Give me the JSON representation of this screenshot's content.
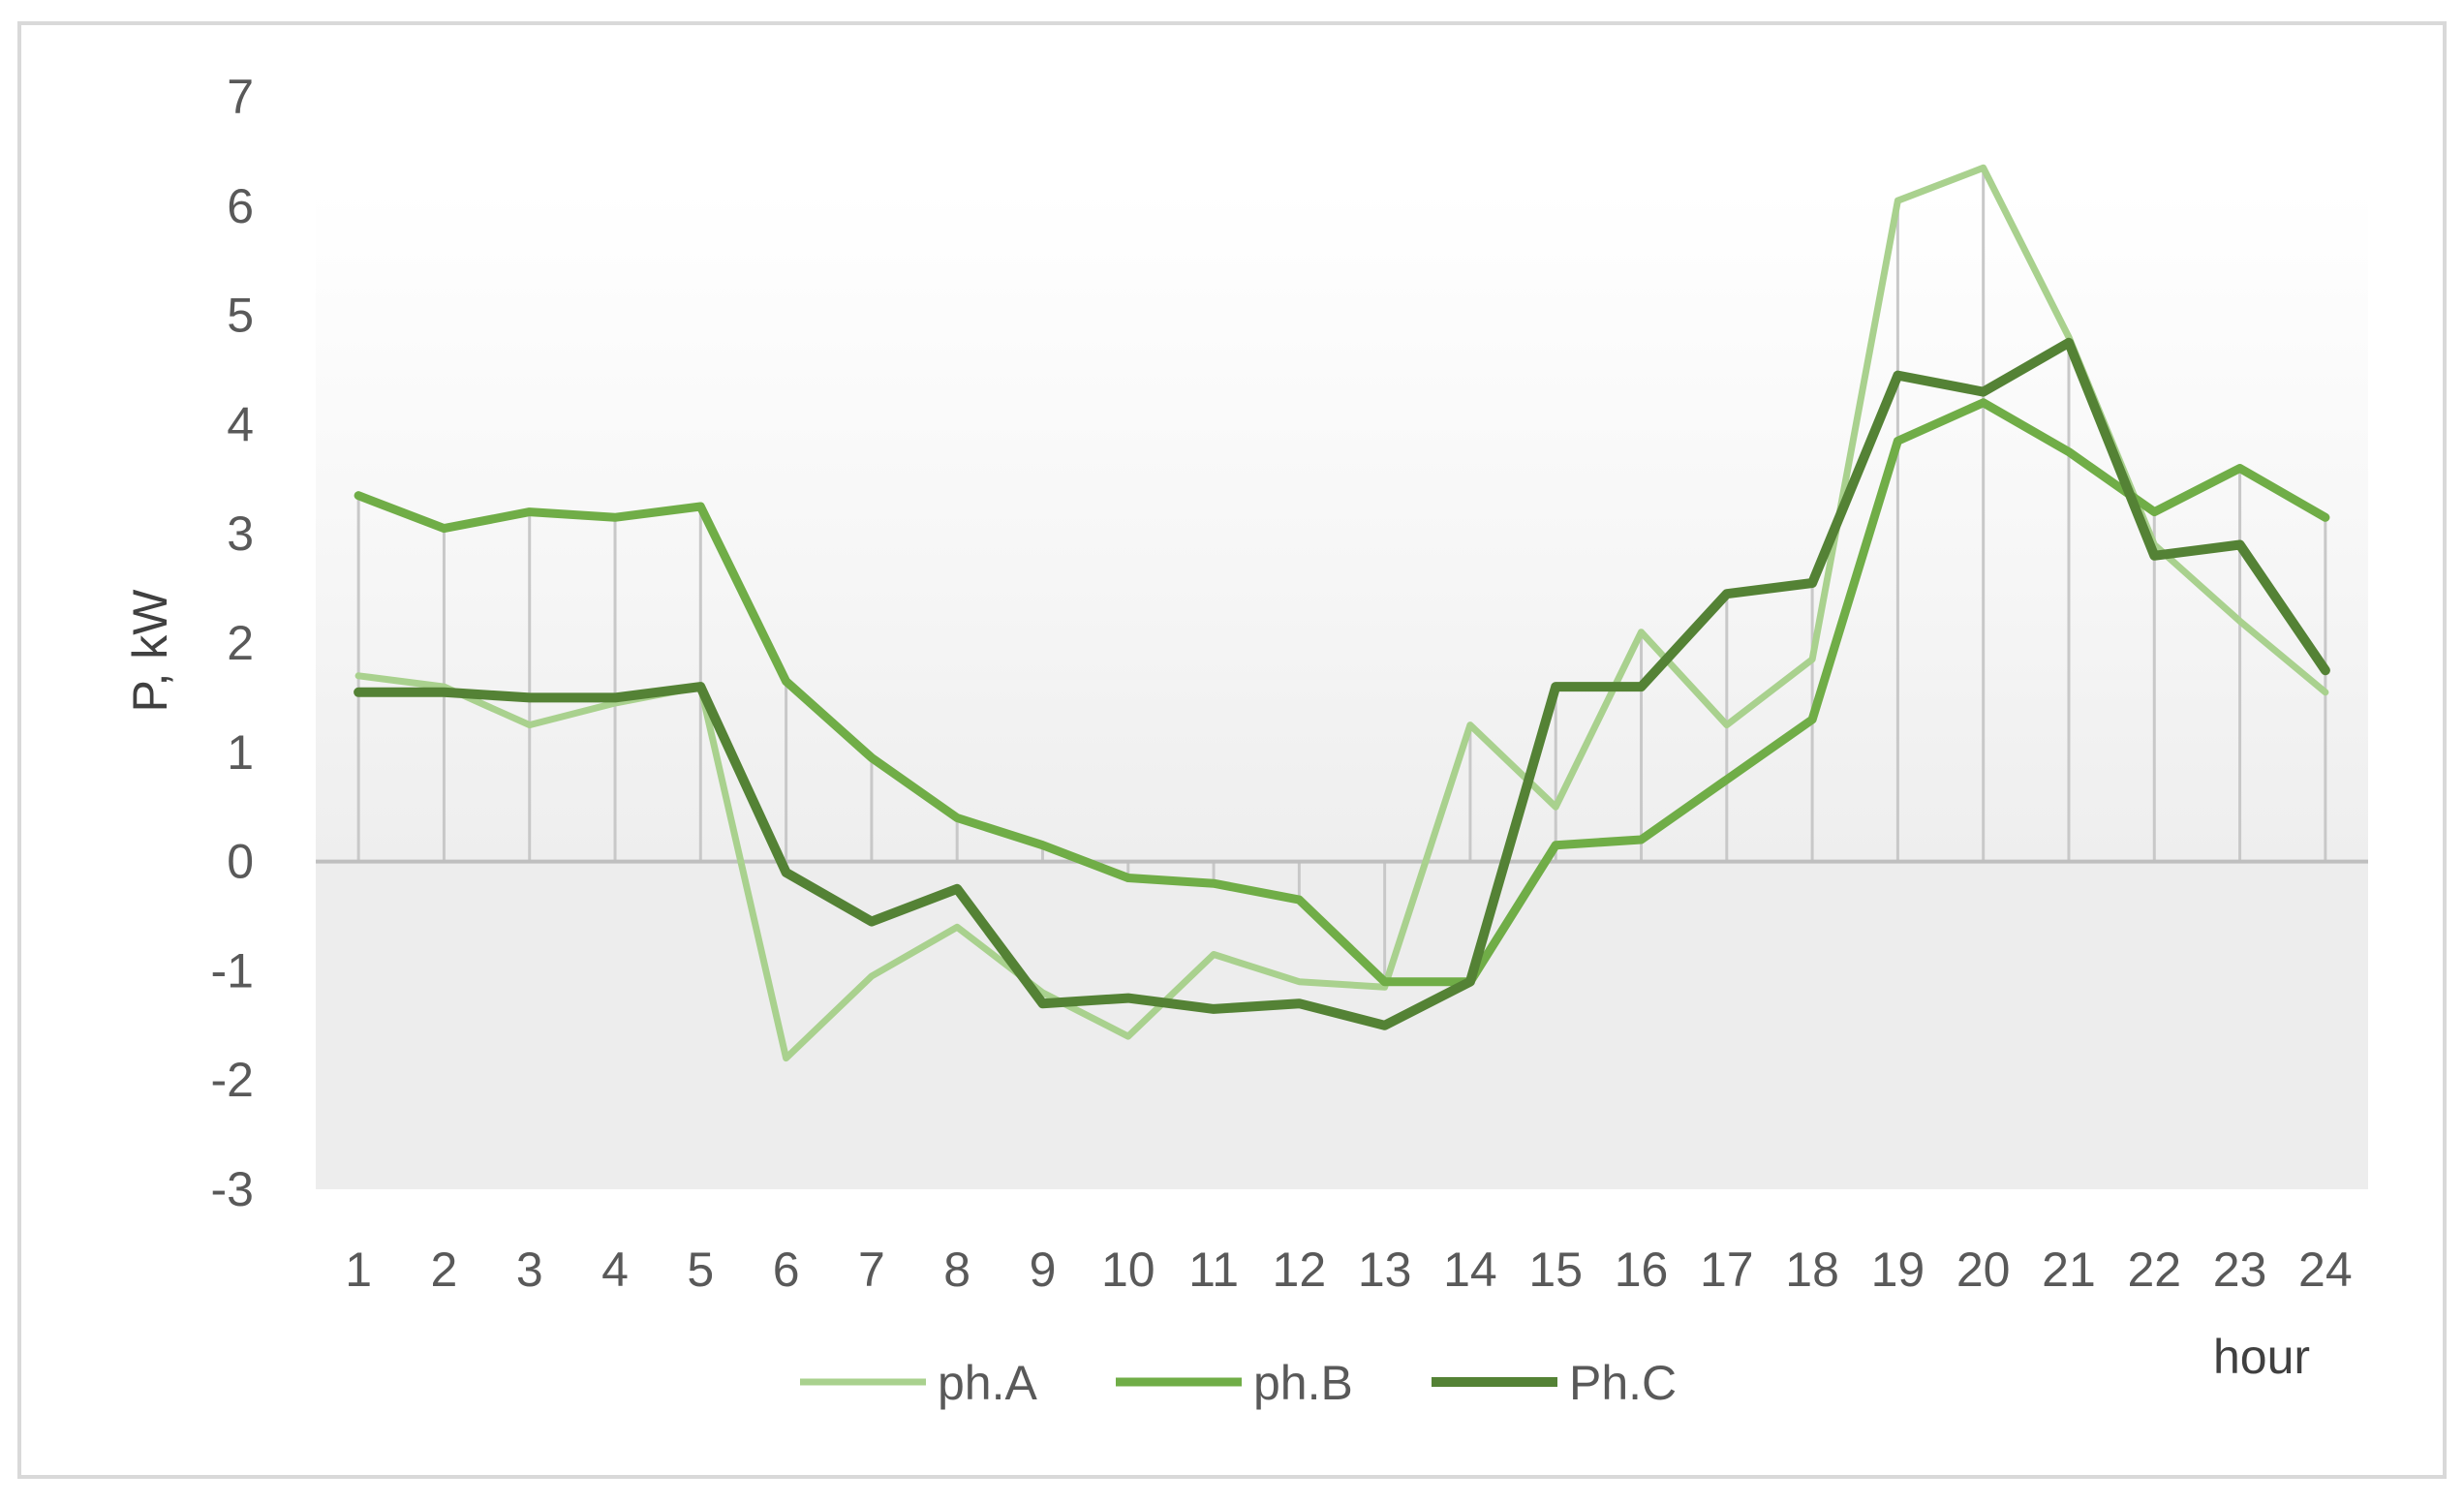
{
  "chart_data": {
    "type": "line",
    "categories": [
      "1",
      "2",
      "3",
      "4",
      "5",
      "6",
      "7",
      "8",
      "9",
      "10",
      "11",
      "12",
      "13",
      "14",
      "15",
      "16",
      "17",
      "18",
      "19",
      "20",
      "21",
      "22",
      "23",
      "24"
    ],
    "series": [
      {
        "name": "ph.A",
        "color": "#a9d18e",
        "values": [
          1.7,
          1.6,
          1.25,
          1.45,
          1.6,
          -1.8,
          -1.05,
          -0.6,
          -1.2,
          -1.6,
          -0.85,
          -1.1,
          -1.15,
          1.25,
          0.5,
          2.1,
          1.25,
          1.85,
          6.05,
          6.35,
          4.8,
          2.9,
          2.2,
          1.55
        ]
      },
      {
        "name": "ph.B",
        "color": "#70ad47",
        "values": [
          3.35,
          3.05,
          3.2,
          3.15,
          3.25,
          1.65,
          0.95,
          0.4,
          0.15,
          -0.15,
          -0.2,
          -0.35,
          -1.1,
          -1.1,
          0.15,
          0.2,
          0.75,
          1.3,
          3.85,
          4.2,
          3.75,
          3.2,
          3.6,
          3.15
        ]
      },
      {
        "name": "Ph.C",
        "color": "#548235",
        "values": [
          1.55,
          1.55,
          1.5,
          1.5,
          1.6,
          -0.1,
          -0.55,
          -0.25,
          -1.3,
          -1.25,
          -1.35,
          -1.3,
          -1.5,
          -1.1,
          1.6,
          1.6,
          2.45,
          2.55,
          4.45,
          4.3,
          4.75,
          2.8,
          2.9,
          1.75
        ]
      }
    ],
    "xlabel": "hour",
    "ylabel": "P, kW",
    "ylim": [
      -3,
      7
    ],
    "yticks": [
      "7",
      "6",
      "5",
      "4",
      "3",
      "2",
      "1",
      "0",
      "-1",
      "-2",
      "-3"
    ],
    "grid": "vertical drop lines at each hour",
    "legend": "bottom-center"
  }
}
